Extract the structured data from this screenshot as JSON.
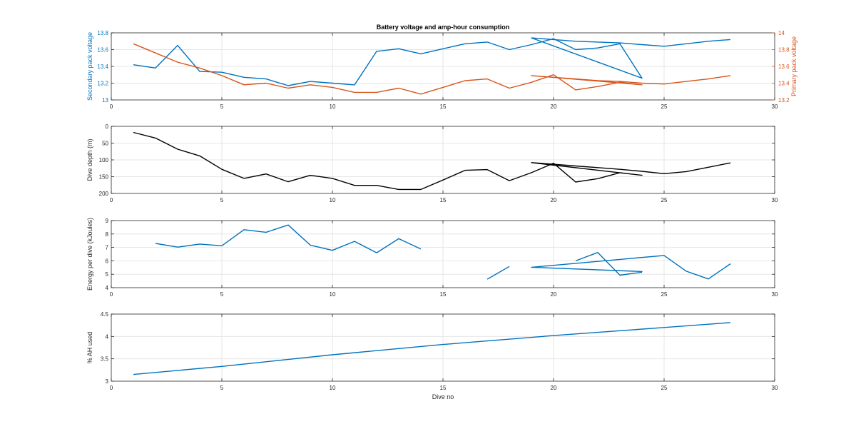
{
  "figure": {
    "title": "Battery voltage and amp-hour consumption",
    "xlabel": "Dive no"
  },
  "colors": {
    "blue": "#0072bd",
    "orange": "#d95319",
    "black": "#000000",
    "grid": "#e6e6e6",
    "axis": "#262626"
  },
  "chart_data": [
    {
      "type": "line",
      "title": "Battery voltage and amp-hour consumption",
      "xlim": [
        0,
        30
      ],
      "xticks": [
        0,
        5,
        10,
        15,
        20,
        25,
        30
      ],
      "ylabel": "Secondary pack voltage",
      "ylim": [
        13,
        13.8
      ],
      "yticks": [
        13,
        13.2,
        13.4,
        13.6,
        13.8
      ],
      "ylabel_right": "Primary pack voltage",
      "ylim_right": [
        13.2,
        14
      ],
      "yticks_right": [
        13.2,
        13.4,
        13.6,
        13.8,
        14
      ],
      "grid": true,
      "series": [
        {
          "axis": "left",
          "color": "#0072bd",
          "x": [
            1,
            2,
            3,
            4,
            5,
            6,
            7,
            8,
            9,
            10,
            11,
            12,
            13,
            14,
            15,
            16,
            17,
            18,
            19,
            20,
            21,
            22,
            23,
            24,
            19,
            20,
            21,
            22,
            23,
            24,
            25,
            26,
            27,
            28
          ],
          "y": [
            13.42,
            13.38,
            13.65,
            13.34,
            13.33,
            13.27,
            13.25,
            13.17,
            13.22,
            13.2,
            13.18,
            13.58,
            13.61,
            13.55,
            13.61,
            13.67,
            13.69,
            13.6,
            13.66,
            13.73,
            13.6,
            13.62,
            13.67,
            13.26,
            13.74,
            13.72,
            13.7,
            13.69,
            13.68,
            13.66,
            13.64,
            13.67,
            13.7,
            13.72
          ]
        },
        {
          "axis": "right",
          "color": "#d95319",
          "x": [
            1,
            2,
            3,
            4,
            5,
            6,
            7,
            8,
            9,
            10,
            11,
            12,
            13,
            14,
            15,
            16,
            17,
            18,
            19,
            20,
            21,
            22,
            23,
            24,
            19,
            20,
            21,
            22,
            23,
            24,
            25,
            26,
            27,
            28
          ],
          "y": [
            13.87,
            13.76,
            13.65,
            13.58,
            13.49,
            13.38,
            13.4,
            13.34,
            13.38,
            13.35,
            13.29,
            13.29,
            13.34,
            13.27,
            13.35,
            13.43,
            13.45,
            13.34,
            13.41,
            13.5,
            13.32,
            13.36,
            13.41,
            13.38,
            13.49,
            13.47,
            13.45,
            13.43,
            13.42,
            13.4,
            13.39,
            13.42,
            13.45,
            13.49
          ]
        }
      ]
    },
    {
      "type": "line",
      "xlim": [
        0,
        30
      ],
      "xticks": [
        0,
        5,
        10,
        15,
        20,
        25,
        30
      ],
      "ylabel": "Dive depth (m)",
      "ylim": [
        0,
        200
      ],
      "yticks": [
        0,
        50,
        100,
        150,
        200
      ],
      "y_reversed": true,
      "grid": true,
      "series": [
        {
          "color": "#000000",
          "x": [
            1,
            2,
            3,
            4,
            5,
            6,
            7,
            8,
            9,
            10,
            11,
            12,
            13,
            14,
            15,
            16,
            17,
            18,
            19,
            20,
            21,
            22,
            23,
            24,
            19,
            20,
            21,
            22,
            23,
            24,
            25,
            26,
            27,
            28
          ],
          "y": [
            18,
            35,
            68,
            88,
            128,
            155,
            142,
            165,
            146,
            155,
            176,
            176,
            188,
            188,
            160,
            131,
            129,
            162,
            138,
            110,
            166,
            156,
            138,
            146,
            108,
            113,
            118,
            123,
            128,
            134,
            141,
            135,
            122,
            109
          ]
        }
      ]
    },
    {
      "type": "line",
      "xlim": [
        0,
        30
      ],
      "xticks": [
        0,
        5,
        10,
        15,
        20,
        25,
        30
      ],
      "ylabel": "Energy per dive (kJoules)",
      "ylim": [
        4,
        9
      ],
      "yticks": [
        4,
        5,
        6,
        7,
        8,
        9
      ],
      "grid": true,
      "series": [
        {
          "color": "#0072bd",
          "segments": [
            {
              "x": [
                2,
                3,
                4,
                5,
                6,
                7,
                8,
                9,
                10,
                11,
                12,
                13,
                14
              ],
              "y": [
                7.3,
                7.02,
                7.25,
                7.12,
                8.32,
                8.13,
                8.67,
                7.17,
                6.78,
                7.45,
                6.6,
                7.65,
                6.88
              ]
            },
            {
              "x": [
                17,
                18
              ],
              "y": [
                4.63,
                5.58
              ]
            },
            {
              "x": [
                19,
                24,
                19,
                25,
                26,
                27,
                28
              ],
              "y": [
                5.52,
                5.2,
                5.52,
                6.4,
                5.23,
                4.65,
                5.78
              ]
            },
            {
              "x": [
                21,
                22,
                23,
                24
              ],
              "y": [
                6.0,
                6.62,
                4.93,
                5.15
              ]
            }
          ]
        }
      ]
    },
    {
      "type": "line",
      "xlim": [
        0,
        30
      ],
      "xticks": [
        0,
        5,
        10,
        15,
        20,
        25,
        30
      ],
      "xlabel": "Dive no",
      "ylabel": "% AH used",
      "ylim": [
        3,
        4.5
      ],
      "yticks": [
        3,
        3.5,
        4,
        4.5
      ],
      "grid": true,
      "series": [
        {
          "color": "#0072bd",
          "x": [
            1,
            5,
            10,
            15,
            20,
            25,
            28
          ],
          "y": [
            3.15,
            3.33,
            3.59,
            3.82,
            4.02,
            4.2,
            4.31
          ]
        }
      ]
    }
  ]
}
